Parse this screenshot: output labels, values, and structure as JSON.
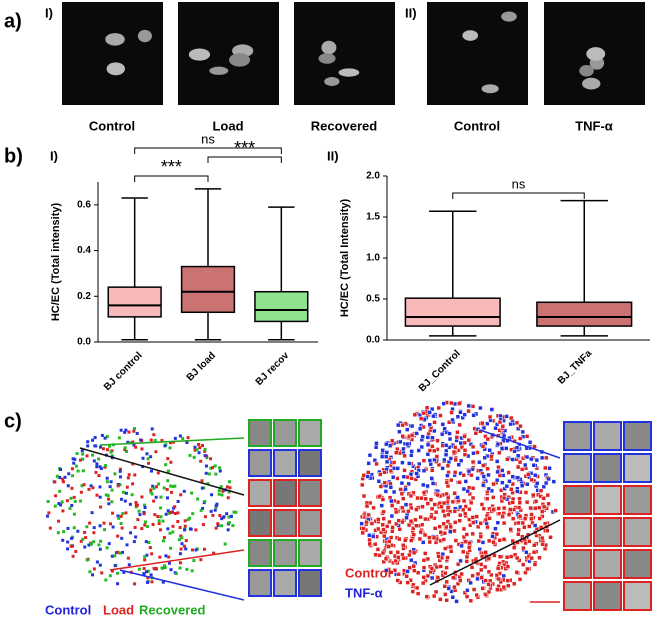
{
  "panel_a": {
    "label": "a)",
    "groups": [
      {
        "label": "I)",
        "images": [
          "Control",
          "Load",
          "Recovered"
        ]
      },
      {
        "label": "II)",
        "images": [
          "Control",
          "TNF-α"
        ]
      }
    ]
  },
  "panel_b": {
    "label": "b)"
  },
  "chart_data": [
    {
      "type": "box",
      "title": "I)",
      "y_label": "HC/EC (Total intensity)",
      "categories": [
        "BJ control",
        "BJ load",
        "BJ recov"
      ],
      "colors": [
        "#f08080",
        "#a00000",
        "#33cc33"
      ],
      "boxes": [
        {
          "min": 0.01,
          "q1": 0.11,
          "median": 0.16,
          "q3": 0.24,
          "max": 0.63
        },
        {
          "min": 0.01,
          "q1": 0.13,
          "median": 0.22,
          "q3": 0.33,
          "max": 0.67
        },
        {
          "min": 0.01,
          "q1": 0.09,
          "median": 0.14,
          "q3": 0.22,
          "max": 0.59
        }
      ],
      "ylim": [
        0,
        0.7
      ],
      "yticks": [
        {
          "value": 0,
          "label": "0.0"
        },
        {
          "value": 0.2,
          "label": "0.2"
        },
        {
          "value": 0.4,
          "label": "0.4"
        },
        {
          "value": 0.6,
          "label": "0.6"
        }
      ],
      "significance": [
        {
          "pair": [
            "BJ control",
            "BJ load"
          ],
          "label": "***"
        },
        {
          "pair": [
            "BJ load",
            "BJ recov"
          ],
          "label": "***"
        },
        {
          "pair": [
            "BJ control",
            "BJ recov"
          ],
          "label": "ns"
        }
      ]
    },
    {
      "type": "box",
      "title": "II)",
      "y_label": "HC/EC (Total Intensity)",
      "categories": [
        "BJ_Control",
        "BJ_TNFa"
      ],
      "colors": [
        "#f08080",
        "#a00000"
      ],
      "boxes": [
        {
          "min": 0.05,
          "q1": 0.17,
          "median": 0.28,
          "q3": 0.51,
          "max": 1.57
        },
        {
          "min": 0.05,
          "q1": 0.17,
          "median": 0.28,
          "q3": 0.46,
          "max": 1.7
        }
      ],
      "ylim": [
        0,
        2.0
      ],
      "yticks": [
        {
          "value": 0,
          "label": "0.0"
        },
        {
          "value": 0.5,
          "label": "0.5"
        },
        {
          "value": 1.0,
          "label": "1.0"
        },
        {
          "value": 1.5,
          "label": "1.5"
        },
        {
          "value": 2.0,
          "label": "2.0"
        }
      ],
      "significance": [
        {
          "pair": [
            "BJ_Control",
            "BJ_TNFa"
          ],
          "label": "ns"
        }
      ]
    }
  ],
  "panel_c": {
    "label": "c)",
    "left_legend": [
      "Control",
      "Load",
      "Recovered"
    ],
    "right_legend": [
      "Control",
      "TNF-α"
    ]
  }
}
